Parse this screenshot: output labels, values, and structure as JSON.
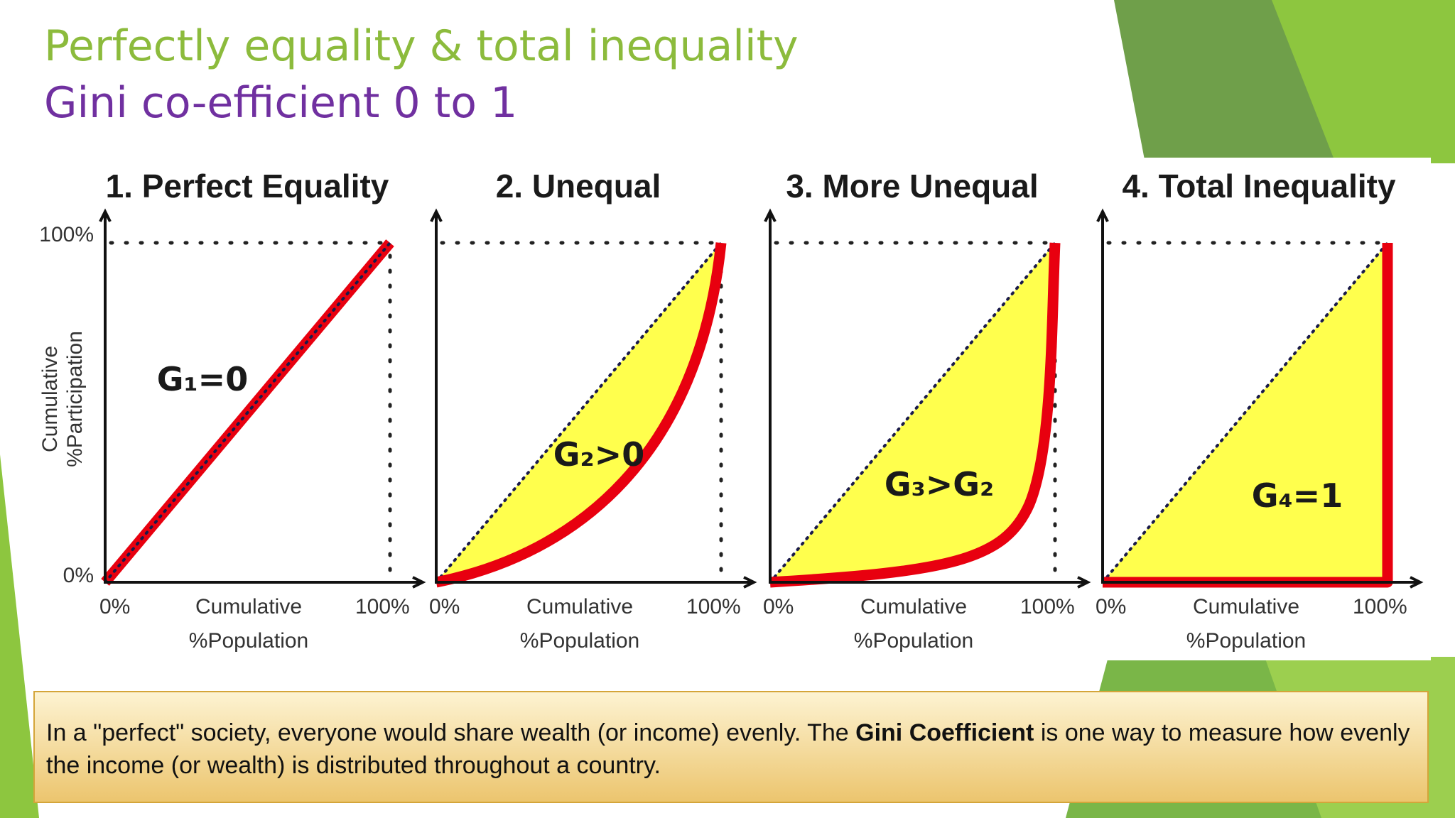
{
  "header": {
    "title_line1": "Perfectly equality & total inequality",
    "title_line2": "Gini co-efficient 0 to 1"
  },
  "diagram": {
    "y_axis": {
      "top": "100%",
      "bottom": "0%",
      "title_line1": "Cumulative",
      "title_line2": "%Participation"
    },
    "panels": [
      {
        "title": "1. Perfect Equality",
        "gini": "G₁=0",
        "x_start": "0%",
        "x_end": "100%",
        "x_title_line1": "Cumulative",
        "x_title_line2": "%Population"
      },
      {
        "title": "2. Unequal",
        "gini": "G₂>0",
        "x_start": "0%",
        "x_end": "100%",
        "x_title_line1": "Cumulative",
        "x_title_line2": "%Population"
      },
      {
        "title": "3. More Unequal",
        "gini": "G₃>G₂",
        "x_start": "0%",
        "x_end": "100%",
        "x_title_line1": "Cumulative",
        "x_title_line2": "%Population"
      },
      {
        "title": "4. Total Inequality",
        "gini": "G₄=1",
        "x_start": "0%",
        "x_end": "100%",
        "x_title_line1": "Cumulative",
        "x_title_line2": "%Population"
      }
    ]
  },
  "caption": {
    "before": "In a \"perfect\" society, everyone would share wealth (or income) evenly. The ",
    "bold": "Gini Coefficient",
    "after": " is one way to measure how evenly the income (or wealth) is distributed throughout a country."
  }
}
